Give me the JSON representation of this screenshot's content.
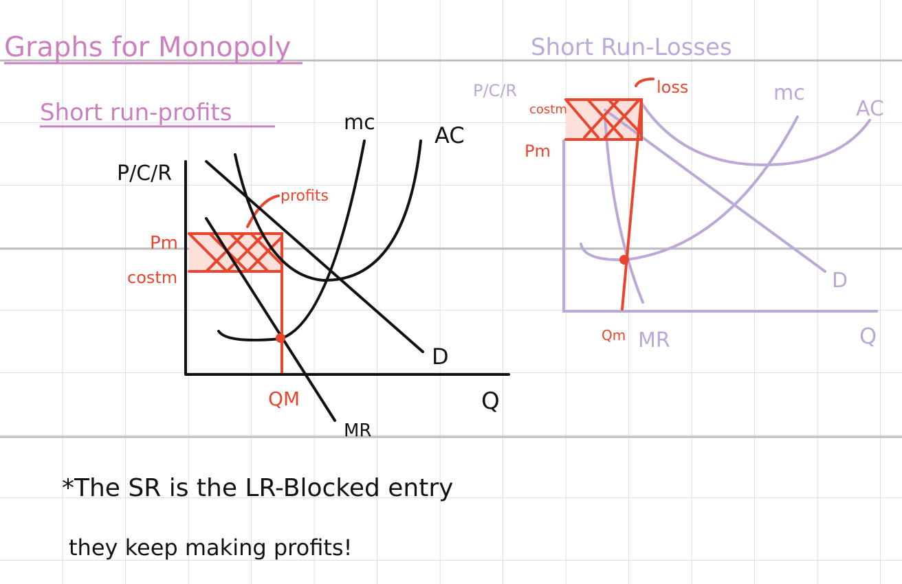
{
  "title": "Graphs for Monopoly",
  "left_graph": {
    "subtitle": "Short run-profits",
    "y_label": "P/C/R",
    "x_label": "Q",
    "curves": {
      "mc": "mc",
      "ac": "AC",
      "demand": "D",
      "mr": "MR"
    },
    "labels": {
      "price": "Pm",
      "cost": "costm",
      "quantity": "QM",
      "area": "profits"
    }
  },
  "right_graph": {
    "subtitle": "Short Run-Losses",
    "y_label": "P/C/R",
    "x_label": "Q",
    "curves": {
      "mc": "mc",
      "ac": "AC",
      "demand": "D",
      "mr": "MR"
    },
    "labels": {
      "price": "Pm",
      "cost": "costm",
      "quantity": "Qm",
      "area": "loss"
    }
  },
  "notes": [
    "*The SR is the LR-Blocked entry",
    "they keep making profits!"
  ]
}
